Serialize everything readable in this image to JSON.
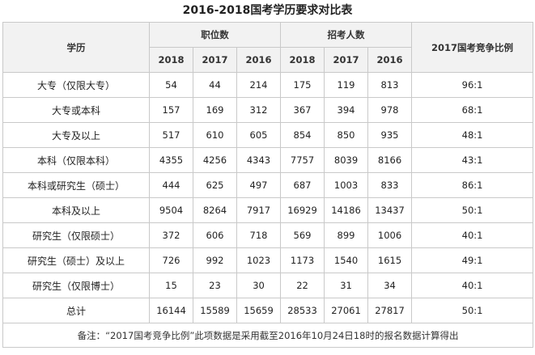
{
  "title": "2016-2018国考学历要求对比表",
  "headers": {
    "education": "学历",
    "positions": "职位数",
    "applicants": "招考人数",
    "ratio": "2017国考竞争比例",
    "years": [
      "2018",
      "2017",
      "2016"
    ]
  },
  "rows": [
    {
      "education": "大专（仅限大专）",
      "positions": [
        "54",
        "44",
        "214"
      ],
      "applicants": [
        "175",
        "119",
        "813"
      ],
      "ratio": "96:1"
    },
    {
      "education": "大专或本科",
      "positions": [
        "157",
        "169",
        "312"
      ],
      "applicants": [
        "367",
        "394",
        "978"
      ],
      "ratio": "68:1"
    },
    {
      "education": "大专及以上",
      "positions": [
        "517",
        "610",
        "605"
      ],
      "applicants": [
        "854",
        "850",
        "935"
      ],
      "ratio": "48:1"
    },
    {
      "education": "本科（仅限本科）",
      "positions": [
        "4355",
        "4256",
        "4343"
      ],
      "applicants": [
        "7757",
        "8039",
        "8166"
      ],
      "ratio": "43:1"
    },
    {
      "education": "本科或研究生（硕士）",
      "positions": [
        "444",
        "625",
        "497"
      ],
      "applicants": [
        "687",
        "1003",
        "833"
      ],
      "ratio": "86:1"
    },
    {
      "education": "本科及以上",
      "positions": [
        "9504",
        "8264",
        "7917"
      ],
      "applicants": [
        "16929",
        "14186",
        "13437"
      ],
      "ratio": "50:1"
    },
    {
      "education": "研究生（仅限硕士）",
      "positions": [
        "372",
        "606",
        "718"
      ],
      "applicants": [
        "569",
        "899",
        "1006"
      ],
      "ratio": "40:1"
    },
    {
      "education": "研究生（硕士）及以上",
      "positions": [
        "726",
        "992",
        "1023"
      ],
      "applicants": [
        "1173",
        "1540",
        "1615"
      ],
      "ratio": "49:1"
    },
    {
      "education": "研究生（仅限博士）",
      "positions": [
        "15",
        "23",
        "30"
      ],
      "applicants": [
        "22",
        "31",
        "34"
      ],
      "ratio": "40:1"
    },
    {
      "education": "总计",
      "positions": [
        "16144",
        "15589",
        "15659"
      ],
      "applicants": [
        "28533",
        "27061",
        "27817"
      ],
      "ratio": "50:1"
    }
  ],
  "note": "备注：“2017国考竞争比例”此项数据是采用截至2016年10月24日18时的报名数据计算得出"
}
